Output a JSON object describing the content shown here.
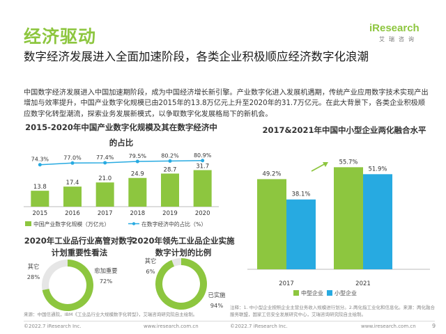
{
  "header": {
    "title": "经济驱动",
    "logo_text": "iResearch",
    "logo_sub": "艾瑞咨询"
  },
  "subtitle": "数字经济发展进入全面加速阶段，各类企业积极顺应经济数字化浪潮",
  "summary": "中国数字经济发展进入中国加速期阶段，成为中国经济增长新引擎。产业数字化进入发展机遇期，传统产业应用数字技术实现产出增加与效率提升，中国产业数字化规模已由2015年的13.8万亿元上升至2020年的31.7万亿元。在此大背景下，各类企业积极顺应数字化转型潮流，探索业务发展新模式，以争取数字化发展格局下的新机会。",
  "colors": {
    "green": "#8dc63f",
    "blue": "#27aae1",
    "light_gray": "#e6e6e6",
    "accent_text": "#8dc63f"
  },
  "chart_data": [
    {
      "type": "bar",
      "title": "2015-2020年中国产业数字化规模及其在数字经济中的占比",
      "categories": [
        "2015",
        "2016",
        "2017",
        "2018",
        "2019",
        "2020"
      ],
      "series": [
        {
          "name": "中国产业数字化规模（万亿元）",
          "type": "bar",
          "values": [
            13.8,
            17.4,
            21.0,
            24.9,
            28.7,
            31.7
          ]
        },
        {
          "name": "在数字经济中的占比（%）",
          "type": "line",
          "values": [
            74.3,
            77.0,
            77.4,
            79.5,
            80.2,
            80.9
          ]
        }
      ],
      "value_labels": [
        "13.8",
        "17.4",
        "21.0",
        "24.9",
        "28.7",
        "31.7"
      ],
      "line_labels": [
        "74.3%",
        "77.0%",
        "77.4%",
        "79.5%",
        "80.2%",
        "80.9%"
      ],
      "ylim": [
        0,
        35
      ]
    },
    {
      "type": "bar",
      "title": "2017&2021年中国中小型企业两化融合水平",
      "categories": [
        "2017",
        "2021"
      ],
      "series": [
        {
          "name": "中型企业",
          "values": [
            49.2,
            55.7
          ]
        },
        {
          "name": "小型企业",
          "values": [
            38.1,
            51.9
          ]
        }
      ],
      "value_labels": [
        [
          "49.2%",
          "55.7%"
        ],
        [
          "38.1%",
          "51.9%"
        ]
      ],
      "ylim": [
        0,
        60
      ],
      "legend": "bottom"
    },
    {
      "type": "pie",
      "title": "2020年工业品行业高管对数字计划重要性看法",
      "slices": [
        {
          "label": "愈加重要",
          "value": 72,
          "display": "72%"
        },
        {
          "label": "其它",
          "value": 28,
          "display": "28%"
        }
      ]
    },
    {
      "type": "pie",
      "title": "2020年领先工业品企业实施数字计划的比例",
      "slices": [
        {
          "label": "已实施",
          "value": 94,
          "display": "94%"
        },
        {
          "label": "其它",
          "value": 6,
          "display": "6%"
        }
      ]
    }
  ],
  "footnotes": {
    "left": "来源：中国信通院，IBM《工业品行业大规模数字化转型》，艾瑞咨询研究院自主绘制。",
    "right": "注释：1. 中小型企业按照企业主营业务收入规模进行划分。2.两化指工业化和信息化。来源：两化融合服务联盟，国家工信安全发展研究中心，艾瑞咨询研究院自主绘制。"
  },
  "footer": {
    "left_copy": "©2022.7 iResearch Inc.",
    "left_url": "www.iresearch.com.cn",
    "right_copy": "©2022.7 iResearch Inc.",
    "right_url": "www.iresearch.com.cn",
    "page": "9"
  }
}
